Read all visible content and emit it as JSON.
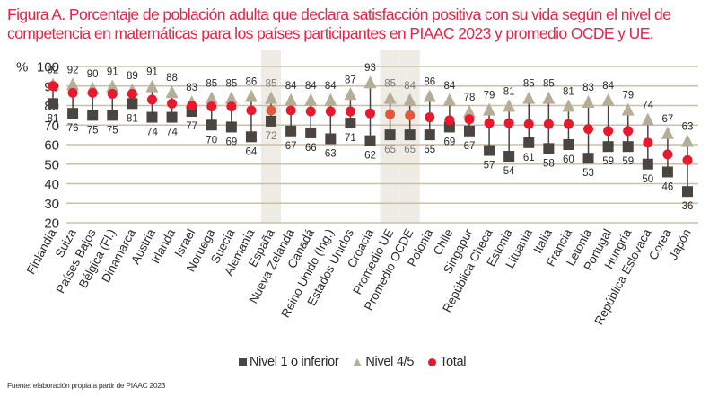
{
  "title_lines": [
    "Figura A. Porcentaje de población adulta que declara satisfacción positiva con su vida según el nivel de",
    "competencia en matemáticas para los países participantes en PIAAC 2023 y promedio OCDE y UE."
  ],
  "source": "Fuente: elaboración propia a partir de PIAAC 2023",
  "colors": {
    "title": "#e8234a",
    "nivel1": "#4a4540",
    "nivel45": "#b5ad97",
    "total": "#e8192c",
    "total_highlight": "#e4573a",
    "gridline": "#c9c0a8",
    "highlight_band": "#efece6",
    "highlight_label": "#7a7a7a"
  },
  "chart_data": {
    "type": "dot-range",
    "title": "Figura A. Porcentaje de población adulta que declara satisfacción positiva con su vida según el nivel de competencia en matemáticas para los países participantes en PIAAC 2023 y promedio OCDE y UE.",
    "ylabel": "%",
    "ylim": [
      20,
      100
    ],
    "yticks": [
      20,
      30,
      40,
      50,
      60,
      70,
      80,
      90,
      100
    ],
    "grid": true,
    "legend_position": "bottom",
    "categories": [
      "Finlandia",
      "Suiza",
      "Países Bajos",
      "Bélgica (Fl.)",
      "Dinamarca",
      "Austria",
      "Irlanda",
      "Israel",
      "Noruega",
      "Suecia",
      "Alemania",
      "España",
      "Nueva Zelanda",
      "Canadá",
      "Reino Unido (Ing.)",
      "Estados Unidos",
      "Croacia",
      "Promedio UE",
      "Promedio OCDE",
      "Polonia",
      "Chile",
      "Singapur",
      "República Checa",
      "Estonia",
      "Lituania",
      "Italia",
      "Francia",
      "Letonia",
      "Portugal",
      "Hungría",
      "República Eslovaca",
      "Corea",
      "Japón"
    ],
    "highlighted": [
      "España",
      "Promedio UE",
      "Promedio OCDE"
    ],
    "series": [
      {
        "name": "Nivel 1 o inferior",
        "marker": "square",
        "labeled": true,
        "values": [
          81,
          76,
          75,
          75,
          81,
          74,
          74,
          77,
          70,
          69,
          64,
          72,
          67,
          66,
          63,
          71,
          62,
          65,
          65,
          65,
          69,
          67,
          57,
          54,
          61,
          58,
          60,
          53,
          59,
          59,
          50,
          46,
          36
        ]
      },
      {
        "name": "Nivel 4/5",
        "marker": "triangle",
        "labeled": true,
        "values": [
          92,
          92,
          90,
          91,
          89,
          91,
          88,
          83,
          85,
          85,
          86,
          85,
          84,
          84,
          84,
          87,
          93,
          85,
          84,
          86,
          84,
          78,
          79,
          81,
          85,
          85,
          81,
          83,
          84,
          79,
          74,
          67,
          63
        ]
      },
      {
        "name": "Total",
        "marker": "circle",
        "labeled": false,
        "values": [
          90,
          86.5,
          86.5,
          86,
          86,
          83,
          81,
          80,
          79.5,
          79.5,
          77.5,
          77.5,
          77.5,
          77,
          77,
          77,
          76,
          75.5,
          75,
          74,
          72.5,
          73,
          71,
          71,
          70.5,
          70.5,
          70.5,
          68,
          67,
          67,
          61,
          55,
          52
        ]
      }
    ]
  },
  "legend": {
    "nivel1": "Nivel 1 o inferior",
    "nivel45": "Nivel 4/5",
    "total": "Total"
  }
}
